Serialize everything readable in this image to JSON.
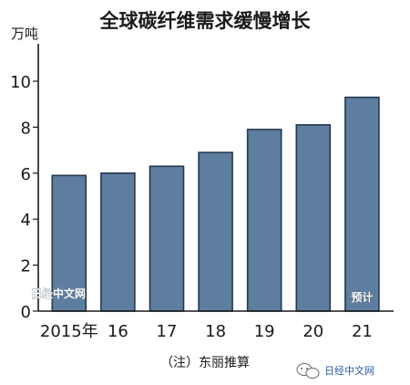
{
  "chart_data": {
    "type": "bar",
    "title": "全球碳纤维需求缓慢增长",
    "ylabel": "万吨",
    "xlabel": "",
    "categories": [
      "2015年",
      "16",
      "17",
      "18",
      "19",
      "20",
      "21"
    ],
    "values": [
      5.9,
      6.0,
      6.3,
      6.9,
      7.9,
      8.1,
      9.3
    ],
    "ylim": [
      0,
      12
    ],
    "yticks": [
      "0",
      "2",
      "4",
      "6",
      "8",
      "10"
    ],
    "ytick_values": [
      0,
      2,
      4,
      6,
      8,
      10
    ],
    "bar_annotations": [
      {
        "category": "21",
        "text": "预计"
      }
    ],
    "note": "（注）东丽推算",
    "grid": false,
    "bar_color": "#5e7ea0"
  },
  "watermark": "日经中文网",
  "brand_label": "日经中文网",
  "brand_icon": "wechat-icon"
}
